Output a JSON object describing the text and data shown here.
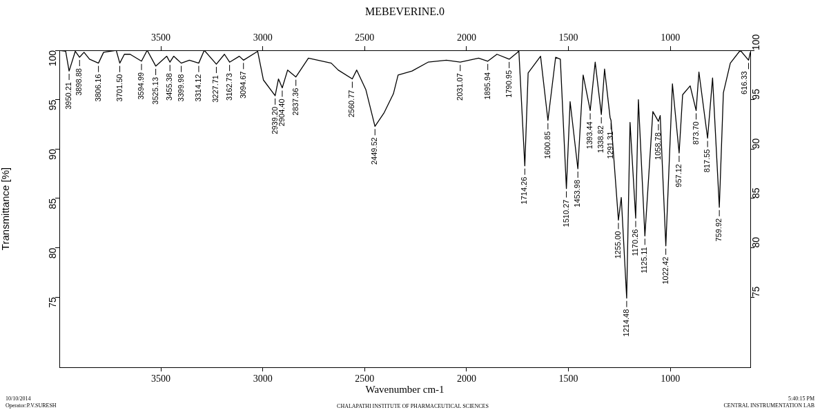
{
  "chart_data": {
    "type": "line",
    "title": "MEBEVERINE.0",
    "xlabel": "Wavenumber cm-1",
    "ylabel": "Transmittance [%]",
    "xlim": [
      3998,
      608
    ],
    "xticks": [
      3500,
      3000,
      2500,
      2000,
      1500,
      1000
    ],
    "x2lim": [
      3998,
      608
    ],
    "x2ticks": [
      3500,
      3000,
      2500,
      2000,
      1500,
      1000
    ],
    "ylim": [
      67.9,
      100
    ],
    "yticks": [
      75,
      80,
      85,
      90,
      95,
      100
    ],
    "y2lim": [
      67.9,
      100
    ],
    "y2ticks": [
      75,
      80,
      85,
      90,
      95,
      100
    ],
    "grid": false,
    "legend": false,
    "marker": "none",
    "line_style": "solid",
    "x": [
      3998,
      3967,
      3950.21,
      3920,
      3898.88,
      3877,
      3850,
      3806.16,
      3781,
      3719,
      3701.5,
      3679,
      3651,
      3594.99,
      3567,
      3525.13,
      3471,
      3455.38,
      3437,
      3399.98,
      3360,
      3314.12,
      3287,
      3227.71,
      3188,
      3162.73,
      3115,
      3094.67,
      3025,
      2997,
      2939.2,
      2923,
      2904.4,
      2878,
      2837.36,
      2776,
      2664,
      2630,
      2560.77,
      2539,
      2494,
      2449.52,
      2404,
      2359,
      2336,
      2268,
      2189,
      2099,
      2031.07,
      1941,
      1895.94,
      1851,
      1790.95,
      1749,
      1743.6,
      1714.26,
      1698,
      1637,
      1600.85,
      1563,
      1540,
      1510.27,
      1492,
      1453.98,
      1428,
      1393.44,
      1369,
      1338.82,
      1323,
      1296,
      1291.31,
      1255,
      1241,
      1214.48,
      1198,
      1170.26,
      1157,
      1125.11,
      1086,
      1058.78,
      1050,
      1022.42,
      990,
      957.12,
      940,
      903,
      873.7,
      860,
      817.55,
      793,
      759.92,
      740,
      706,
      657,
      616.33,
      608
    ],
    "series": [
      {
        "color": "#000000",
        "values": [
          100,
          99.9,
          97.9,
          99.9,
          99.3,
          99.8,
          99.1,
          98.7,
          99.8,
          100,
          98.7,
          99.6,
          99.6,
          98.9,
          100,
          98.4,
          99.4,
          98.8,
          99.4,
          98.7,
          99.0,
          98.7,
          100,
          98.6,
          99.6,
          98.8,
          99.4,
          99.0,
          99.9,
          97.0,
          95.4,
          97.1,
          96.2,
          98.0,
          97.3,
          99.2,
          98.7,
          98.0,
          97.1,
          98.0,
          96.0,
          92.3,
          93.7,
          95.6,
          97.5,
          97.9,
          98.8,
          99.0,
          98.8,
          99.2,
          98.9,
          99.6,
          99.1,
          99.8,
          100,
          88.3,
          97.7,
          99.4,
          92.9,
          99.3,
          99.1,
          86.0,
          94.8,
          88.0,
          97.5,
          93.9,
          98.8,
          93.5,
          98.1,
          93.2,
          92.9,
          82.8,
          85.1,
          74.9,
          92.7,
          83.0,
          95.0,
          81.2,
          93.8,
          92.8,
          93.4,
          80.2,
          96.6,
          89.6,
          95.5,
          96.4,
          93.9,
          97.8,
          91.1,
          97.2,
          84.1,
          95.7,
          98.7,
          100,
          99.0,
          99.8
        ]
      }
    ],
    "annotations": [
      {
        "text": "3950.21",
        "x": 3950.21,
        "y": 97.9
      },
      {
        "text": "3898.88",
        "x": 3898.88,
        "y": 99.3
      },
      {
        "text": "3806.16",
        "x": 3806.16,
        "y": 98.7
      },
      {
        "text": "3701.50",
        "x": 3701.5,
        "y": 98.7
      },
      {
        "text": "3594.99",
        "x": 3594.99,
        "y": 98.9
      },
      {
        "text": "3525.13",
        "x": 3525.13,
        "y": 98.4
      },
      {
        "text": "3455.38",
        "x": 3455.38,
        "y": 98.8
      },
      {
        "text": "3399.98",
        "x": 3399.98,
        "y": 98.7
      },
      {
        "text": "3314.12",
        "x": 3314.12,
        "y": 98.7
      },
      {
        "text": "3227.71",
        "x": 3227.71,
        "y": 98.6
      },
      {
        "text": "3162.73",
        "x": 3162.73,
        "y": 98.8
      },
      {
        "text": "3094.67",
        "x": 3094.67,
        "y": 99.0
      },
      {
        "text": "2939.20",
        "x": 2939.2,
        "y": 95.4
      },
      {
        "text": "2904.40",
        "x": 2904.4,
        "y": 96.2
      },
      {
        "text": "2837.36",
        "x": 2837.36,
        "y": 97.3
      },
      {
        "text": "2560.77",
        "x": 2560.77,
        "y": 97.1
      },
      {
        "text": "2449.52",
        "x": 2449.52,
        "y": 92.3
      },
      {
        "text": "2031.07",
        "x": 2031.07,
        "y": 98.8
      },
      {
        "text": "1895.94",
        "x": 1895.94,
        "y": 98.9
      },
      {
        "text": "1790.95",
        "x": 1790.95,
        "y": 99.1
      },
      {
        "text": "1714.26",
        "x": 1714.26,
        "y": 88.3
      },
      {
        "text": "1600.85",
        "x": 1600.85,
        "y": 92.9
      },
      {
        "text": "1510.27",
        "x": 1510.27,
        "y": 86.0
      },
      {
        "text": "1453.98",
        "x": 1453.98,
        "y": 88.0
      },
      {
        "text": "1393.44",
        "x": 1393.44,
        "y": 93.9
      },
      {
        "text": "1338.82",
        "x": 1338.82,
        "y": 93.5
      },
      {
        "text": "1291.31",
        "x": 1291.31,
        "y": 92.9
      },
      {
        "text": "1255.00",
        "x": 1255,
        "y": 82.8
      },
      {
        "text": "1214.48",
        "x": 1214.48,
        "y": 74.9
      },
      {
        "text": "1170.26",
        "x": 1170.26,
        "y": 83.0
      },
      {
        "text": "1125.11",
        "x": 1125.11,
        "y": 81.2
      },
      {
        "text": "1058.78",
        "x": 1058.78,
        "y": 92.8
      },
      {
        "text": "1022.42",
        "x": 1022.42,
        "y": 80.2
      },
      {
        "text": "957.12",
        "x": 957.12,
        "y": 89.6
      },
      {
        "text": "873.70",
        "x": 873.7,
        "y": 93.9
      },
      {
        "text": "817.55",
        "x": 817.55,
        "y": 91.1
      },
      {
        "text": "759.92",
        "x": 759.92,
        "y": 84.1
      },
      {
        "text": "616.33",
        "x": 616.33,
        "y": 99.0
      },
      "10/10/2014",
      "Operator:P.V.SURESH",
      "CHALAPATHI INSTITUTE OF PHARMACEUTICAL SCIENCES",
      "5:40:15 PM",
      "CENTRAL INSTRUMENTATION LAB"
    ]
  }
}
